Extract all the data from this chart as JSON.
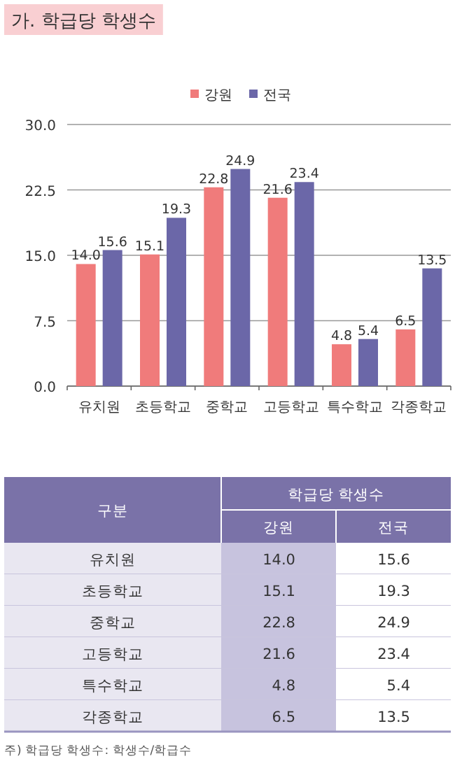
{
  "chart_data": {
    "type": "bar",
    "title": "가. 학급당 학생수",
    "categories": [
      "유치원",
      "초등학교",
      "중학교",
      "고등학교",
      "특수학교",
      "각종학교"
    ],
    "series": [
      {
        "name": "강원",
        "color": "#f07b7b",
        "values": [
          14.0,
          15.1,
          22.8,
          21.6,
          4.8,
          6.5
        ],
        "value_labels": [
          "14.0",
          "15.1",
          "22.8",
          "21.6",
          "4.8",
          "6.5"
        ]
      },
      {
        "name": "전국",
        "color": "#6b67a8",
        "values": [
          15.6,
          19.3,
          24.9,
          23.4,
          5.4,
          13.5
        ],
        "value_labels": [
          "15.6",
          "19.3",
          "24.9",
          "23.4",
          "5.4",
          "13.5"
        ]
      }
    ],
    "ylim": [
      0,
      30
    ],
    "yticks": [
      {
        "value": 0,
        "label": "0.0"
      },
      {
        "value": 7.5,
        "label": "7.5"
      },
      {
        "value": 15,
        "label": "15.0"
      },
      {
        "value": 22.5,
        "label": "22.5"
      },
      {
        "value": 30,
        "label": "30.0"
      }
    ],
    "grid": "y",
    "legend": "top",
    "annotations": [
      "구분",
      "학급당 학생수",
      "주) 학급당 학생수: 학생수/학급수"
    ]
  }
}
